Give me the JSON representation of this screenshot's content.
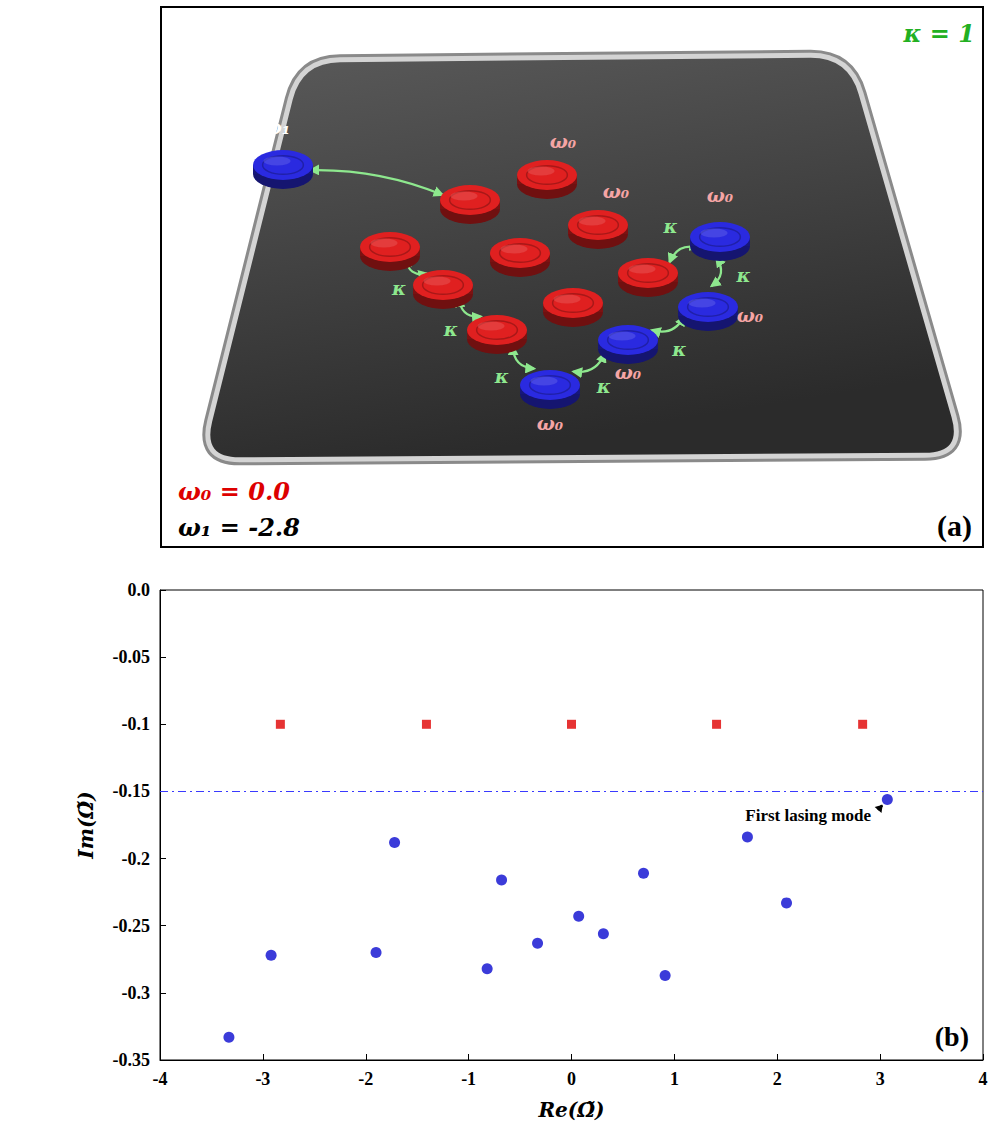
{
  "diagram": {
    "panel_label": "(a)",
    "coupling": {
      "label": "κ = 1",
      "color": "#22b022"
    },
    "frequencies": [
      {
        "label": "ω₀ = 0.0",
        "color": "#dd0000"
      },
      {
        "label": "ω₁ = -2.8",
        "color": "#000000"
      }
    ],
    "nodes": [
      {
        "color": "#2a2ae0",
        "label": "ω₁"
      },
      {
        "color": "#e02020",
        "label": "ω₀"
      },
      {
        "color": "#e02020"
      },
      {
        "color": "#e02020",
        "label": "ω₀"
      },
      {
        "color": "#e02020"
      },
      {
        "color": "#e02020"
      },
      {
        "color": "#2a2ae0",
        "label": "ω₀"
      },
      {
        "color": "#e02020"
      },
      {
        "color": "#e02020"
      },
      {
        "color": "#e02020"
      },
      {
        "color": "#e02020"
      },
      {
        "color": "#2a2ae0",
        "label": "ω₀"
      },
      {
        "color": "#2a2ae0",
        "label": "ω₀"
      },
      {
        "color": "#2a2ae0",
        "label": "ω₀"
      }
    ],
    "links": [
      {
        "from": 0,
        "to": 2
      },
      {
        "from": 4,
        "to": 7,
        "label": "κ"
      },
      {
        "from": 7,
        "to": 10,
        "label": "κ"
      },
      {
        "from": 10,
        "to": 13,
        "label": "κ"
      },
      {
        "from": 13,
        "to": 12,
        "label": "κ"
      },
      {
        "from": 12,
        "to": 11,
        "label": "κ"
      },
      {
        "from": 11,
        "to": 6,
        "label": "κ"
      },
      {
        "from": 8,
        "to": 6,
        "label": "κ"
      }
    ]
  },
  "chart_data": {
    "type": "scatter",
    "panel_label": "(b)",
    "xlabel": "Re(Ω̃)",
    "ylabel": "Im(Ω̃)",
    "xlim": [
      -4,
      4
    ],
    "xticks": [
      -4,
      -3,
      -2,
      -1,
      0,
      1,
      2,
      3,
      4
    ],
    "ylim": [
      -0.35,
      0
    ],
    "yticks": [
      -0.35,
      -0.3,
      -0.25,
      -0.2,
      -0.15,
      -0.1,
      -0.05,
      {
        "value": 0,
        "label": "0.0"
      }
    ],
    "grid": false,
    "series": [
      {
        "color": "#e00000",
        "marker": "square",
        "x": [
          -2.83,
          -1.41,
          0,
          1.41,
          2.83
        ],
        "values": [
          -0.1,
          -0.1,
          -0.1,
          -0.1,
          -0.1
        ]
      },
      {
        "color": "#0a0ad0",
        "marker": "circle",
        "x": [
          -3.33,
          -2.92,
          -1.9,
          -1.72,
          -0.82,
          -0.68,
          -0.33,
          0.07,
          0.31,
          0.7,
          0.91,
          1.71,
          2.09,
          3.07
        ],
        "values": [
          -0.333,
          -0.272,
          -0.27,
          -0.188,
          -0.282,
          -0.216,
          -0.263,
          -0.243,
          -0.256,
          -0.211,
          -0.287,
          -0.184,
          -0.233,
          -0.156
        ]
      }
    ],
    "reference_lines": [
      {
        "y": -0.155,
        "color": "#3a3aff",
        "line_style": "dashdot"
      }
    ],
    "annotations": [
      {
        "text": "First lasing mode",
        "x": 2.3,
        "y": -0.168,
        "arrow_to": [
          3.07,
          -0.156
        ]
      }
    ]
  }
}
